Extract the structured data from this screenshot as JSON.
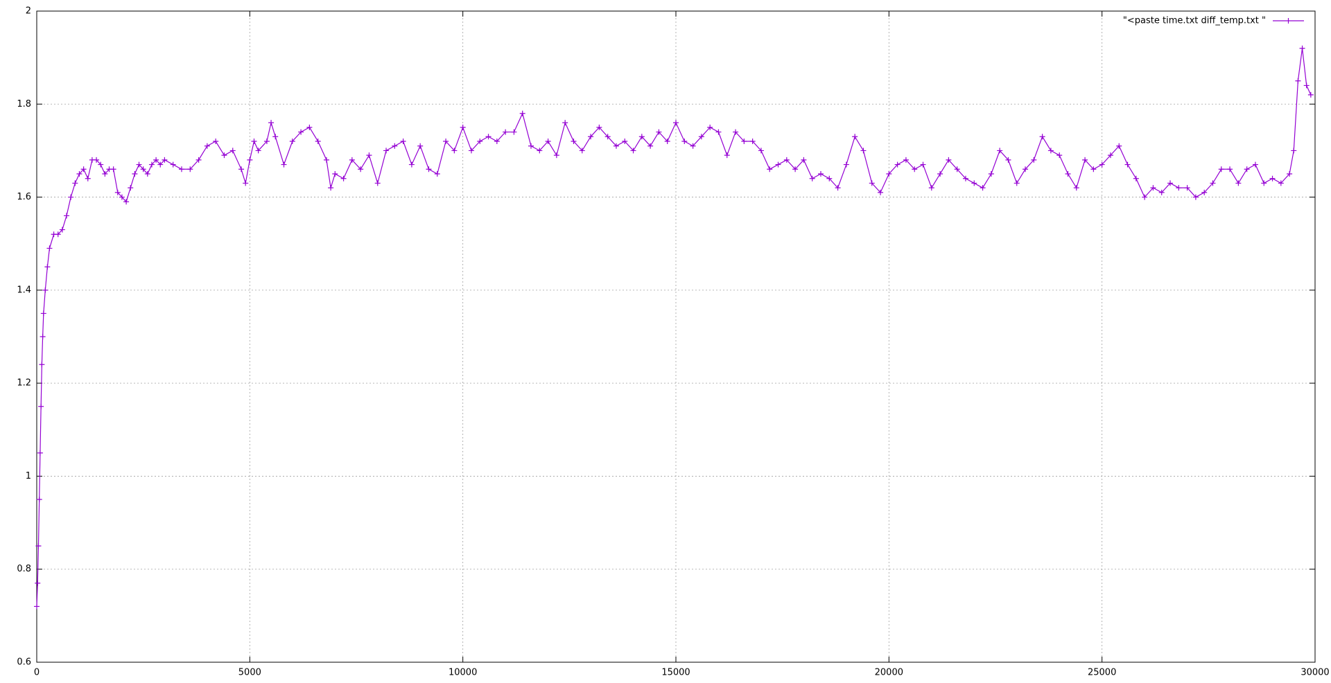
{
  "chart_data": {
    "type": "line",
    "x": [
      0,
      20,
      40,
      60,
      80,
      100,
      120,
      140,
      160,
      200,
      250,
      300,
      400,
      500,
      600,
      700,
      800,
      900,
      1000,
      1100,
      1200,
      1300,
      1400,
      1500,
      1600,
      1700,
      1800,
      1900,
      2000,
      2100,
      2200,
      2300,
      2400,
      2500,
      2600,
      2700,
      2800,
      2900,
      3000,
      3200,
      3400,
      3600,
      3800,
      4000,
      4200,
      4400,
      4600,
      4800,
      4900,
      5000,
      5100,
      5200,
      5400,
      5500,
      5600,
      5800,
      6000,
      6200,
      6400,
      6600,
      6800,
      6900,
      7000,
      7200,
      7400,
      7600,
      7800,
      8000,
      8200,
      8400,
      8600,
      8800,
      9000,
      9200,
      9400,
      9600,
      9800,
      10000,
      10200,
      10400,
      10600,
      10800,
      11000,
      11200,
      11400,
      11600,
      11800,
      12000,
      12200,
      12400,
      12600,
      12800,
      13000,
      13200,
      13400,
      13600,
      13800,
      14000,
      14200,
      14400,
      14600,
      14800,
      15000,
      15200,
      15400,
      15600,
      15800,
      16000,
      16200,
      16400,
      16600,
      16800,
      17000,
      17200,
      17400,
      17600,
      17800,
      18000,
      18200,
      18400,
      18600,
      18800,
      19000,
      19200,
      19400,
      19600,
      19800,
      20000,
      20200,
      20400,
      20600,
      20800,
      21000,
      21200,
      21400,
      21600,
      21800,
      22000,
      22200,
      22400,
      22600,
      22800,
      23000,
      23200,
      23400,
      23600,
      23800,
      24000,
      24200,
      24400,
      24600,
      24800,
      25000,
      25200,
      25400,
      25600,
      25800,
      26000,
      26200,
      26400,
      26600,
      26800,
      27000,
      27200,
      27400,
      27600,
      27800,
      28000,
      28200,
      28400,
      28600,
      28800,
      29000,
      29200,
      29400,
      29500,
      29600,
      29700,
      29800,
      29900
    ],
    "series": [
      {
        "name": "\"<paste time.txt diff_temp.txt \"",
        "color": "#9400d3",
        "values": [
          0.72,
          0.77,
          0.85,
          0.95,
          1.05,
          1.15,
          1.24,
          1.3,
          1.35,
          1.4,
          1.45,
          1.49,
          1.52,
          1.52,
          1.53,
          1.56,
          1.6,
          1.63,
          1.65,
          1.66,
          1.64,
          1.68,
          1.68,
          1.67,
          1.65,
          1.66,
          1.66,
          1.61,
          1.6,
          1.59,
          1.62,
          1.65,
          1.67,
          1.66,
          1.65,
          1.67,
          1.68,
          1.67,
          1.68,
          1.67,
          1.66,
          1.66,
          1.68,
          1.71,
          1.72,
          1.69,
          1.7,
          1.66,
          1.63,
          1.68,
          1.72,
          1.7,
          1.72,
          1.76,
          1.73,
          1.67,
          1.72,
          1.74,
          1.75,
          1.72,
          1.68,
          1.62,
          1.65,
          1.64,
          1.68,
          1.66,
          1.69,
          1.63,
          1.7,
          1.71,
          1.72,
          1.67,
          1.71,
          1.66,
          1.65,
          1.72,
          1.7,
          1.75,
          1.7,
          1.72,
          1.73,
          1.72,
          1.74,
          1.74,
          1.78,
          1.71,
          1.7,
          1.72,
          1.69,
          1.76,
          1.72,
          1.7,
          1.73,
          1.75,
          1.73,
          1.71,
          1.72,
          1.7,
          1.73,
          1.71,
          1.74,
          1.72,
          1.76,
          1.72,
          1.71,
          1.73,
          1.75,
          1.74,
          1.69,
          1.74,
          1.72,
          1.72,
          1.7,
          1.66,
          1.67,
          1.68,
          1.66,
          1.68,
          1.64,
          1.65,
          1.64,
          1.62,
          1.67,
          1.73,
          1.7,
          1.63,
          1.61,
          1.65,
          1.67,
          1.68,
          1.66,
          1.67,
          1.62,
          1.65,
          1.68,
          1.66,
          1.64,
          1.63,
          1.62,
          1.65,
          1.7,
          1.68,
          1.63,
          1.66,
          1.68,
          1.73,
          1.7,
          1.69,
          1.65,
          1.62,
          1.68,
          1.66,
          1.67,
          1.69,
          1.71,
          1.67,
          1.64,
          1.6,
          1.62,
          1.61,
          1.63,
          1.62,
          1.62,
          1.6,
          1.61,
          1.63,
          1.66,
          1.66,
          1.63,
          1.66,
          1.67,
          1.63,
          1.64,
          1.63,
          1.65,
          1.7,
          1.85,
          1.92,
          1.84,
          1.82
        ]
      }
    ],
    "xlim": [
      0,
      30000
    ],
    "xticks": [
      0,
      5000,
      10000,
      15000,
      20000,
      25000,
      30000
    ],
    "ylim": [
      0.6,
      2
    ],
    "yticks": [
      0.6,
      0.8,
      1,
      1.2,
      1.4,
      1.6,
      1.8,
      2
    ],
    "grid": true,
    "legend": "top-right"
  }
}
